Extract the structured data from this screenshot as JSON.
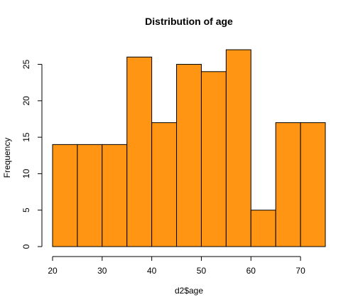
{
  "chart_data": {
    "type": "bar",
    "title": "Distribution of age",
    "xlabel": "d2$age",
    "ylabel": "Frequency",
    "bin_edges": [
      20,
      25,
      30,
      35,
      40,
      45,
      50,
      55,
      60,
      65,
      70,
      75
    ],
    "values": [
      14,
      14,
      14,
      26,
      17,
      25,
      24,
      27,
      5,
      17,
      17
    ],
    "xlim": [
      20,
      75
    ],
    "ylim": [
      0,
      27
    ],
    "x_ticks": [
      20,
      30,
      40,
      50,
      60,
      70
    ],
    "y_ticks": [
      0,
      5,
      10,
      15,
      20,
      25
    ],
    "bar_color": "#FF9512",
    "grid": false
  }
}
